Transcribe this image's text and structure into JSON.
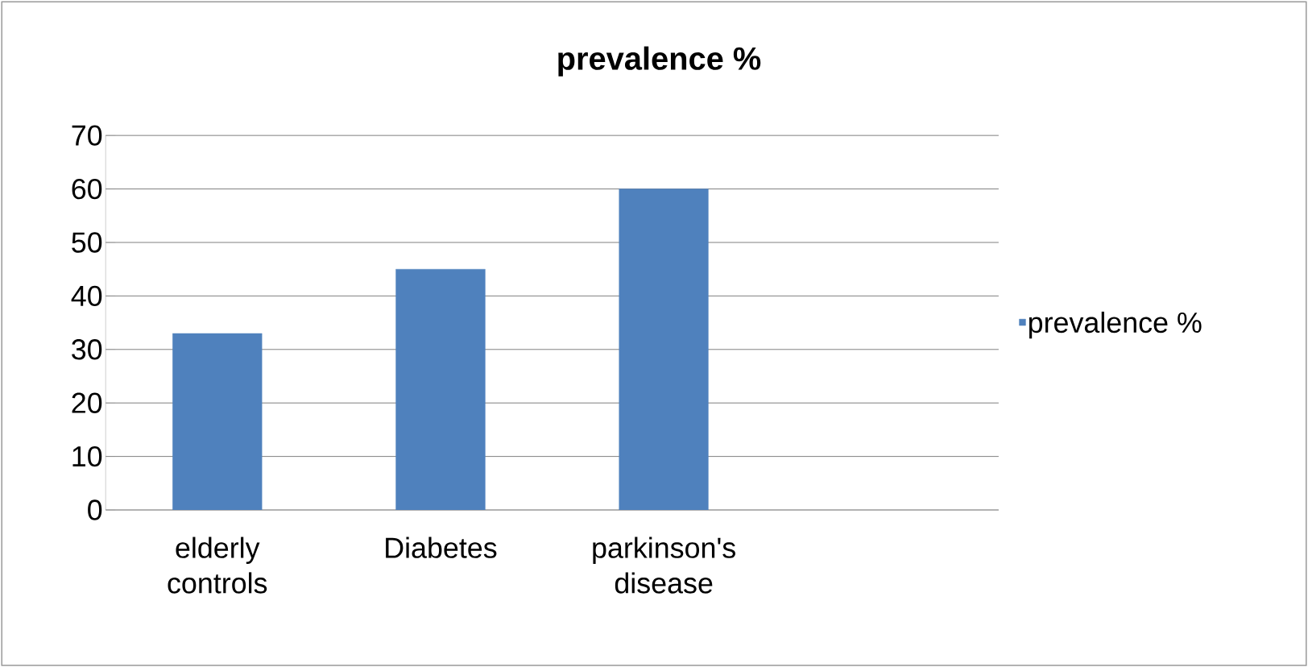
{
  "chart_data": {
    "type": "bar",
    "title": "prevalence %",
    "categories": [
      "elderly controls",
      "Diabetes",
      "parkinson's disease",
      null
    ],
    "series": [
      {
        "name": "prevalence %",
        "color": "#4f81bd",
        "values": [
          33,
          45,
          60,
          null
        ]
      }
    ],
    "ylim": [
      0,
      70
    ],
    "yticks": [
      0,
      10,
      20,
      30,
      40,
      50,
      60,
      70
    ],
    "grid": "y",
    "legend": "right"
  }
}
